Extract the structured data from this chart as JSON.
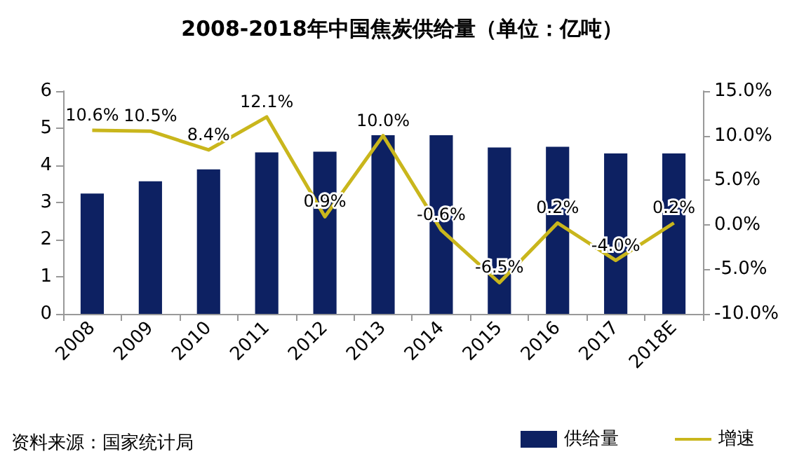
{
  "chart_data": {
    "type": "bar",
    "title": "2008-2018年中国焦炭供给量（单位：亿吨）",
    "categories": [
      "2008",
      "2009",
      "2010",
      "2011",
      "2012",
      "2013",
      "2014",
      "2015",
      "2016",
      "2017",
      "2018E"
    ],
    "series": [
      {
        "name": "供给量",
        "color": "#0d2162",
        "values": [
          3.24,
          3.57,
          3.89,
          4.35,
          4.37,
          4.81,
          4.81,
          4.48,
          4.5,
          4.32,
          4.32
        ]
      },
      {
        "name": "增速",
        "type": "line",
        "axis": "y2",
        "color": "#c9b61c",
        "values": [
          10.6,
          10.5,
          8.4,
          12.1,
          0.9,
          10.0,
          -0.6,
          -6.5,
          0.2,
          -4.0,
          0.2
        ],
        "value_labels": [
          "10.6%",
          "10.5%",
          "8.4%",
          "12.1%",
          "0.9%",
          "10.0%",
          "-0.6%",
          "-6.5%",
          "0.2%",
          "-4.0%",
          "0.2%"
        ]
      }
    ],
    "ylim": [
      0,
      6
    ],
    "yticks": [
      0,
      1,
      2,
      3,
      4,
      5,
      6
    ],
    "y2lim": [
      -10,
      15
    ],
    "y2ticks": [
      {
        "value": -10,
        "label": "-10.0%"
      },
      {
        "value": -5,
        "label": "-5.0%"
      },
      {
        "value": 0,
        "label": "0.0%"
      },
      {
        "value": 5,
        "label": "5.0%"
      },
      {
        "value": 10,
        "label": "10.0%"
      },
      {
        "value": 15,
        "label": "15.0%"
      }
    ],
    "grid": false,
    "legend": "bottom right",
    "marker": "none",
    "annotations": [
      "资料来源：国家统计局"
    ]
  }
}
